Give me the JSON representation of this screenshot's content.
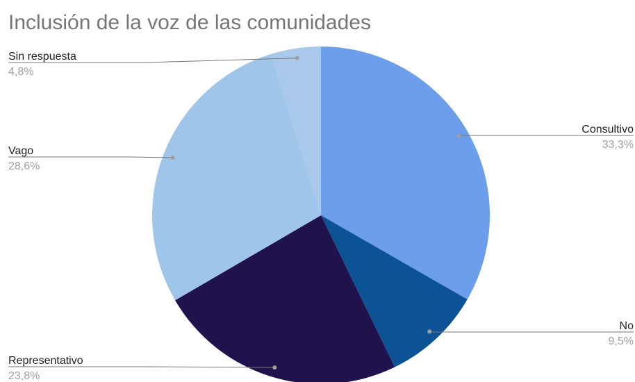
{
  "chart_data": {
    "type": "pie",
    "title": "Inclusión de la voz de las comunidades",
    "categories": [
      "Consultivo",
      "No",
      "Representativo",
      "Vago",
      "Sin respuesta"
    ],
    "values": [
      33.3,
      9.5,
      23.8,
      28.6,
      4.8
    ],
    "value_labels": [
      "33,3%",
      "9,5%",
      "23,8%",
      "28,6%",
      "4,8%"
    ],
    "colors": [
      "#6d9eeb",
      "#0b5394",
      "#20124d",
      "#9fc5e8",
      "#a8c9ea"
    ]
  }
}
